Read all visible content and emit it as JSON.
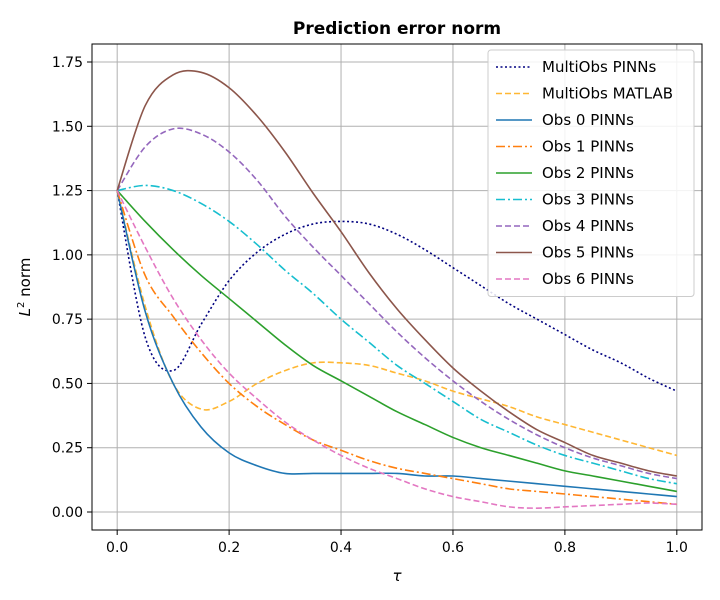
{
  "chart_data": {
    "type": "line",
    "title": "Prediction error norm",
    "xlabel": "τ",
    "ylabel_main": "L",
    "ylabel_sup": "2",
    "ylabel_rest": " norm",
    "xlim": [
      -0.045,
      1.045
    ],
    "ylim": [
      -0.07,
      1.82
    ],
    "xticks": [
      0.0,
      0.2,
      0.4,
      0.6,
      0.8,
      1.0
    ],
    "xtick_labels": [
      "0.0",
      "0.2",
      "0.4",
      "0.6",
      "0.8",
      "1.0"
    ],
    "yticks": [
      0.0,
      0.25,
      0.5,
      0.75,
      1.0,
      1.25,
      1.5,
      1.75
    ],
    "ytick_labels": [
      "0.00",
      "0.25",
      "0.50",
      "0.75",
      "1.00",
      "1.25",
      "1.50",
      "1.75"
    ],
    "grid": true,
    "legend_position": "top-right",
    "x": [
      0.0,
      0.05,
      0.1,
      0.15,
      0.2,
      0.25,
      0.3,
      0.35,
      0.4,
      0.45,
      0.5,
      0.55,
      0.6,
      0.65,
      0.7,
      0.75,
      0.8,
      0.85,
      0.9,
      0.95,
      1.0
    ],
    "series": [
      {
        "name": "MultiObs PINNs",
        "color": "#000080",
        "dash": "2,2.5",
        "values": [
          1.25,
          0.68,
          0.55,
          0.73,
          0.9,
          1.01,
          1.08,
          1.12,
          1.13,
          1.12,
          1.08,
          1.02,
          0.95,
          0.88,
          0.81,
          0.75,
          0.69,
          0.63,
          0.58,
          0.52,
          0.47
        ]
      },
      {
        "name": "MultiObs MATLAB",
        "color": "#FFB733",
        "dash": "6,3",
        "values": [
          1.25,
          0.8,
          0.5,
          0.4,
          0.43,
          0.5,
          0.55,
          0.58,
          0.58,
          0.57,
          0.54,
          0.51,
          0.47,
          0.44,
          0.41,
          0.37,
          0.34,
          0.31,
          0.28,
          0.25,
          0.22
        ]
      },
      {
        "name": "Obs 0 PINNs",
        "color": "#1f77b4",
        "dash": "",
        "values": [
          1.25,
          0.78,
          0.5,
          0.33,
          0.23,
          0.18,
          0.15,
          0.15,
          0.15,
          0.15,
          0.15,
          0.14,
          0.14,
          0.13,
          0.12,
          0.11,
          0.1,
          0.09,
          0.08,
          0.07,
          0.06
        ]
      },
      {
        "name": "Obs 1 PINNs",
        "color": "#ff7f0e",
        "dash": "9,3,2,3",
        "values": [
          1.25,
          0.92,
          0.76,
          0.62,
          0.5,
          0.41,
          0.34,
          0.28,
          0.24,
          0.2,
          0.17,
          0.15,
          0.13,
          0.11,
          0.09,
          0.08,
          0.07,
          0.06,
          0.05,
          0.04,
          0.03
        ]
      },
      {
        "name": "Obs 2 PINNs",
        "color": "#2ca02c",
        "dash": "",
        "values": [
          1.25,
          1.13,
          1.02,
          0.92,
          0.83,
          0.74,
          0.65,
          0.57,
          0.51,
          0.45,
          0.39,
          0.34,
          0.29,
          0.25,
          0.22,
          0.19,
          0.16,
          0.14,
          0.12,
          0.1,
          0.08
        ]
      },
      {
        "name": "Obs 3 PINNs",
        "color": "#17becf",
        "dash": "9,3,2,3",
        "values": [
          1.25,
          1.27,
          1.25,
          1.2,
          1.13,
          1.04,
          0.94,
          0.85,
          0.75,
          0.66,
          0.57,
          0.5,
          0.43,
          0.36,
          0.31,
          0.26,
          0.22,
          0.19,
          0.16,
          0.13,
          0.11
        ]
      },
      {
        "name": "Obs 4 PINNs",
        "color": "#9467bd",
        "dash": "6,3",
        "values": [
          1.25,
          1.42,
          1.49,
          1.47,
          1.4,
          1.29,
          1.15,
          1.03,
          0.92,
          0.81,
          0.7,
          0.6,
          0.51,
          0.43,
          0.36,
          0.3,
          0.25,
          0.21,
          0.18,
          0.15,
          0.13
        ]
      },
      {
        "name": "Obs 5 PINNs",
        "color": "#8c564b",
        "dash": "",
        "values": [
          1.25,
          1.58,
          1.7,
          1.71,
          1.65,
          1.54,
          1.4,
          1.24,
          1.09,
          0.93,
          0.79,
          0.67,
          0.56,
          0.47,
          0.39,
          0.32,
          0.27,
          0.22,
          0.19,
          0.16,
          0.14
        ]
      },
      {
        "name": "Obs 6 PINNs",
        "color": "#e377c2",
        "dash": "6,3",
        "values": [
          1.25,
          1.03,
          0.83,
          0.67,
          0.54,
          0.44,
          0.35,
          0.28,
          0.22,
          0.17,
          0.13,
          0.09,
          0.06,
          0.04,
          0.02,
          0.015,
          0.02,
          0.025,
          0.03,
          0.035,
          0.03
        ]
      }
    ]
  }
}
